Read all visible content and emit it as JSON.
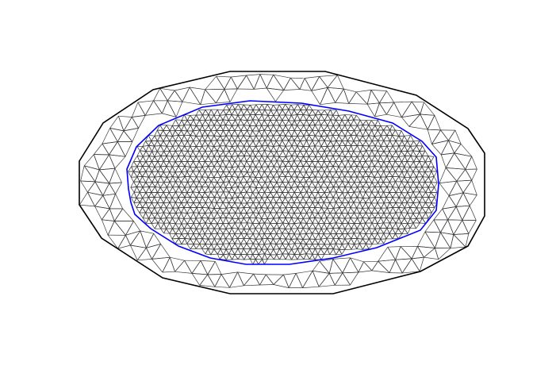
{
  "figure": {
    "kind": "triangular-mesh",
    "colors": {
      "background": "#ffffff",
      "mesh_edges": "#3a3a3a",
      "outer_boundary": "#000000",
      "inner_boundary": "#0000ff"
    },
    "regions": [
      {
        "name": "outer-annulus",
        "mesh": "coarse"
      },
      {
        "name": "inner-region",
        "mesh": "fine"
      }
    ],
    "boundaries": [
      "outer",
      "inner"
    ]
  }
}
